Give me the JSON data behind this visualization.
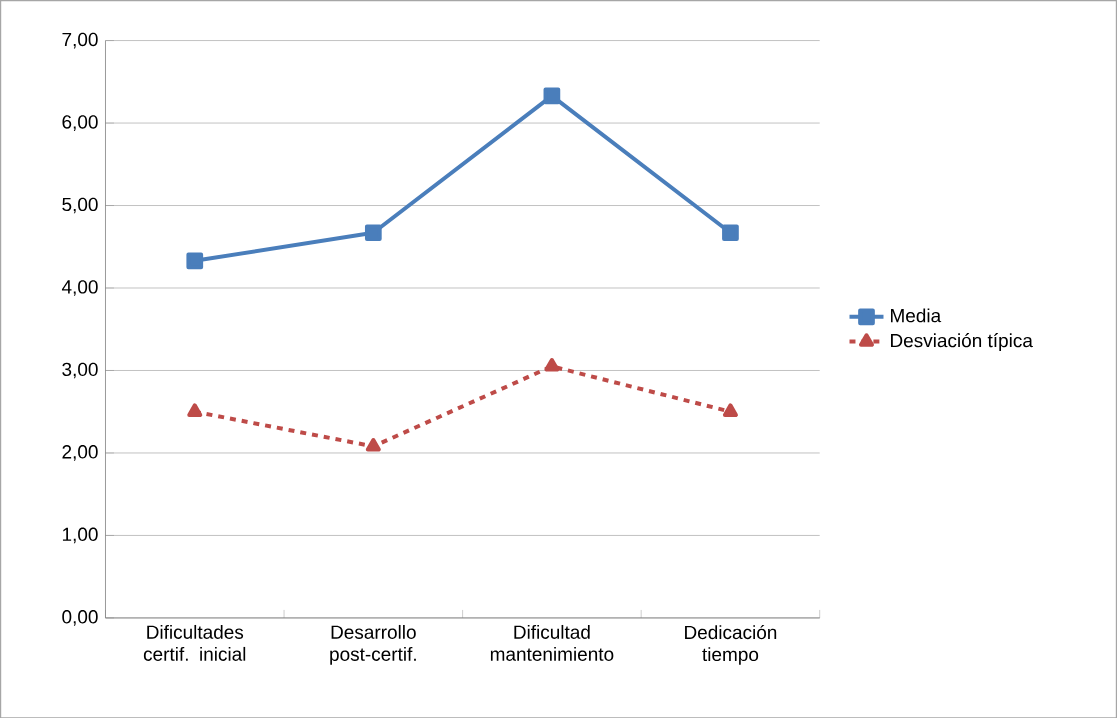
{
  "chart_data": {
    "type": "line",
    "categories": [
      "Dificultades certif. inicial",
      "Desarrollo post-certif.",
      "Dificultad mantenimiento",
      "Dedicación tiempo"
    ],
    "series": [
      {
        "name": "Media",
        "color": "#4a7ebb",
        "values": [
          4.33,
          4.67,
          6.33,
          4.67
        ],
        "marker": "square",
        "line_style": "solid"
      },
      {
        "name": "Desviación típica",
        "color": "#be4b48",
        "values": [
          2.5,
          2.08,
          3.05,
          2.5
        ],
        "marker": "triangle",
        "line_style": "dashed"
      }
    ],
    "ylim": [
      0,
      7
    ],
    "yticks": [
      {
        "value": 0,
        "label": "0,00"
      },
      {
        "value": 1,
        "label": "1,00"
      },
      {
        "value": 2,
        "label": "2,00"
      },
      {
        "value": 3,
        "label": "3,00"
      },
      {
        "value": 4,
        "label": "4,00"
      },
      {
        "value": 5,
        "label": "5,00"
      },
      {
        "value": 6,
        "label": "6,00"
      },
      {
        "value": 7,
        "label": "7,00"
      }
    ],
    "grid": "y",
    "legend": "right"
  }
}
